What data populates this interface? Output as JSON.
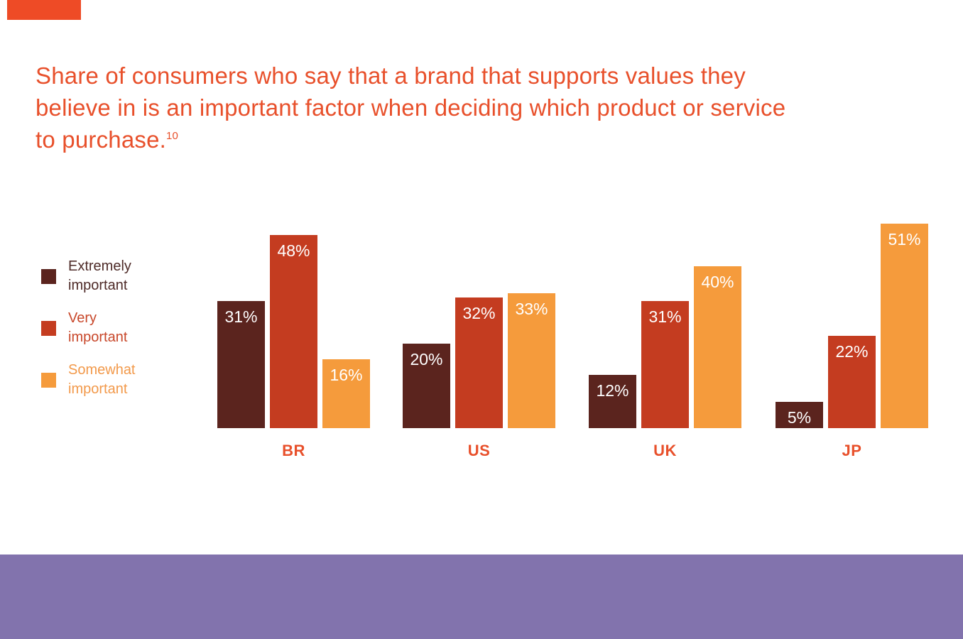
{
  "page": {
    "background": "#FFFFFF"
  },
  "accent_bar": {
    "color": "#EE4B26"
  },
  "title": {
    "lines": [
      "Share of consumers who say that a brand that supports values they",
      "believe in is an important factor when deciding which product or service",
      "to purchase."
    ],
    "footnote": "10",
    "color": "#E8502B"
  },
  "legend": {
    "items": [
      {
        "lines": [
          "Extremely",
          "important"
        ],
        "color": "#5B241E",
        "text_color": "#4E2B28"
      },
      {
        "lines": [
          "Very",
          "important"
        ],
        "color": "#C43C20",
        "text_color": "#C8472A"
      },
      {
        "lines": [
          "Somewhat",
          "important"
        ],
        "color": "#F59B3C",
        "text_color": "#F2994A"
      }
    ]
  },
  "chart_data": {
    "type": "bar",
    "title": "Share of consumers who say that a brand that supports values they believe in is an important factor when deciding which product or service to purchase.",
    "title_footnote": "10",
    "categories": [
      "BR",
      "US",
      "UK",
      "JP"
    ],
    "series": [
      {
        "name": "Extremely important",
        "color": "#5B241E",
        "values": [
          31,
          20,
          12,
          5
        ]
      },
      {
        "name": "Very important",
        "color": "#C43C20",
        "values": [
          48,
          32,
          31,
          22
        ]
      },
      {
        "name": "Somewhat important",
        "color": "#F59B3C",
        "values": [
          16,
          33,
          40,
          51
        ]
      }
    ],
    "value_suffix": "%",
    "value_label_color": "#FFFFFF",
    "category_label_color": "#E8502B",
    "ylim": [
      0,
      55
    ],
    "grid": false,
    "legend_position": "left"
  },
  "footer": {
    "color": "#8273AD"
  }
}
